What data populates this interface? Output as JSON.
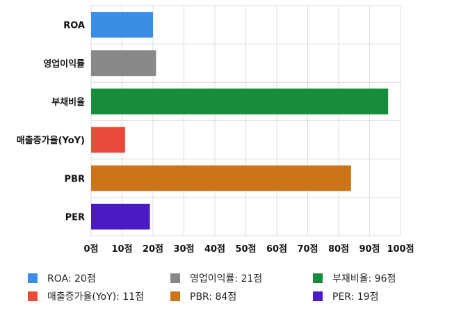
{
  "chart_data": {
    "type": "bar",
    "orientation": "horizontal",
    "categories": [
      "ROA",
      "영업이익률",
      "부채비율",
      "매출증가율(YoY)",
      "PBR",
      "PER"
    ],
    "values": [
      20,
      21,
      96,
      11,
      84,
      19
    ],
    "colors": [
      "#3a8ee6",
      "#888888",
      "#178c3a",
      "#e84b3a",
      "#cc7418",
      "#4a1bc4"
    ],
    "xlim": [
      0,
      100
    ],
    "x_ticks": [
      0,
      10,
      20,
      30,
      40,
      50,
      60,
      70,
      80,
      90,
      100
    ],
    "tick_unit": "점",
    "grid": true,
    "legend_position": "bottom",
    "legend": [
      {
        "label": "ROA: 20점",
        "color": "#3a8ee6"
      },
      {
        "label": "영업이익률: 21점",
        "color": "#888888"
      },
      {
        "label": "부채비율: 96점",
        "color": "#178c3a"
      },
      {
        "label": "매출증가율(YoY): 11점",
        "color": "#e84b3a"
      },
      {
        "label": "PBR: 84점",
        "color": "#cc7418"
      },
      {
        "label": "PER: 19점",
        "color": "#4a1bc4"
      }
    ]
  }
}
